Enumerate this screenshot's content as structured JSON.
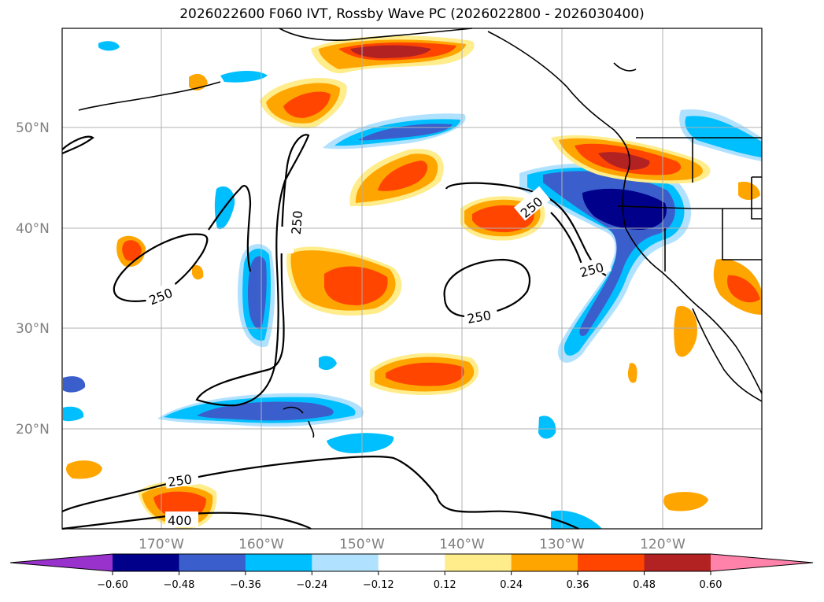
{
  "title": "2026022600 F060 IVT, Rossby Wave PC (2026022800 - 2026030400)",
  "lat_labels": [
    "50°N",
    "40°N",
    "30°N",
    "20°N"
  ],
  "lon_labels": [
    "170°W",
    "160°W",
    "150°W",
    "140°W",
    "130°W",
    "120°W"
  ],
  "colorbar": {
    "ticks": [
      "−0.60",
      "−0.48",
      "−0.36",
      "−0.24",
      "−0.12",
      "0.12",
      "0.24",
      "0.36",
      "0.48",
      "0.60"
    ],
    "colors": [
      "#9932cc",
      "#00008b",
      "#3a5fcd",
      "#00bfff",
      "#b0e2ff",
      "#ffffff",
      "#ffec8b",
      "#ffa500",
      "#ff4500",
      "#b22222",
      "#ff82ab"
    ]
  },
  "contour_labels": [
    "250",
    "250",
    "250",
    "250",
    "250",
    "250",
    "400"
  ]
}
